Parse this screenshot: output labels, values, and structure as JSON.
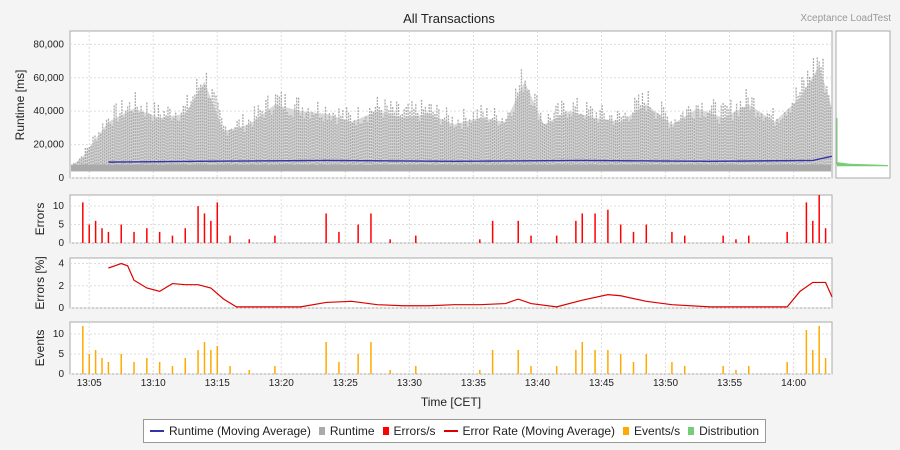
{
  "chart_data": {
    "type": "composite",
    "title": "All Transactions",
    "brand": "Xceptance LoadTest",
    "xlabel": "Time [CET]",
    "x_tick_labels": [
      "13:05",
      "13:10",
      "13:15",
      "13:20",
      "13:25",
      "13:30",
      "13:35",
      "13:40",
      "13:45",
      "13:50",
      "13:55",
      "14:00"
    ],
    "x_range_minutes": [
      0,
      59.5
    ],
    "colors": {
      "runtime_avg": "#3333aa",
      "runtime": "#aaaaaa",
      "errors": "#ff0000",
      "error_rate": "#dd0000",
      "events": "#ffaa00",
      "distribution": "#77cc77",
      "grid": "#dddddd"
    },
    "panels": {
      "runtime": {
        "ylabel": "Runtime [ms]",
        "y_ticks": [
          "0",
          "20,000",
          "40,000",
          "60,000",
          "80,000"
        ],
        "ylim": [
          0,
          88000
        ],
        "moving_average": [
          [
            3,
            9500
          ],
          [
            10,
            10000
          ],
          [
            20,
            10500
          ],
          [
            30,
            10000
          ],
          [
            40,
            10500
          ],
          [
            50,
            10000
          ],
          [
            58,
            10500
          ],
          [
            59.5,
            13000
          ]
        ],
        "envelope_max": [
          [
            0,
            8000
          ],
          [
            1,
            16000
          ],
          [
            3,
            42000
          ],
          [
            5,
            52000
          ],
          [
            7,
            45000
          ],
          [
            9,
            48000
          ],
          [
            10.5,
            72000
          ],
          [
            12,
            35000
          ],
          [
            14,
            40000
          ],
          [
            16,
            55000
          ],
          [
            18,
            50000
          ],
          [
            20,
            48000
          ],
          [
            22,
            42000
          ],
          [
            24,
            50000
          ],
          [
            26,
            45000
          ],
          [
            28,
            48000
          ],
          [
            30,
            40000
          ],
          [
            32,
            45000
          ],
          [
            34,
            42000
          ],
          [
            35.5,
            72000
          ],
          [
            37,
            40000
          ],
          [
            39,
            50000
          ],
          [
            41,
            45000
          ],
          [
            43,
            42000
          ],
          [
            45,
            55000
          ],
          [
            47,
            40000
          ],
          [
            49,
            52000
          ],
          [
            51,
            45000
          ],
          [
            53,
            55000
          ],
          [
            55,
            42000
          ],
          [
            57,
            60000
          ],
          [
            58.5,
            84000
          ],
          [
            59.5,
            52000
          ]
        ]
      },
      "errors": {
        "ylabel": "Errors",
        "y_ticks": [
          "0",
          "5",
          "10"
        ],
        "ylim": [
          0,
          13
        ],
        "bars": [
          [
            1,
            11
          ],
          [
            1.5,
            5
          ],
          [
            2,
            6
          ],
          [
            2.5,
            4
          ],
          [
            3,
            3
          ],
          [
            4,
            5
          ],
          [
            5,
            3
          ],
          [
            6,
            4
          ],
          [
            7,
            3
          ],
          [
            8,
            2
          ],
          [
            9,
            4
          ],
          [
            10,
            10
          ],
          [
            10.5,
            8
          ],
          [
            11,
            6
          ],
          [
            11.5,
            11
          ],
          [
            12.5,
            2
          ],
          [
            14,
            1
          ],
          [
            16,
            2
          ],
          [
            20,
            8
          ],
          [
            21,
            3
          ],
          [
            22.5,
            5
          ],
          [
            23.5,
            8
          ],
          [
            25,
            1
          ],
          [
            27,
            2
          ],
          [
            32,
            1
          ],
          [
            33,
            6
          ],
          [
            35,
            6
          ],
          [
            36,
            2
          ],
          [
            38,
            2
          ],
          [
            39.5,
            6
          ],
          [
            40,
            8
          ],
          [
            41,
            8
          ],
          [
            42,
            9
          ],
          [
            43,
            5
          ],
          [
            44,
            3
          ],
          [
            45,
            5
          ],
          [
            47,
            3
          ],
          [
            48,
            2
          ],
          [
            51,
            2
          ],
          [
            52,
            1
          ],
          [
            53,
            2
          ],
          [
            56,
            3
          ],
          [
            57.5,
            11
          ],
          [
            58,
            6
          ],
          [
            58.5,
            13
          ],
          [
            59,
            4
          ]
        ]
      },
      "error_rate": {
        "ylabel": "Errors [%]",
        "y_ticks": [
          "0",
          "2",
          "4"
        ],
        "ylim": [
          0,
          4.5
        ],
        "line": [
          [
            3,
            3.6
          ],
          [
            3.5,
            3.8
          ],
          [
            4,
            4.0
          ],
          [
            4.5,
            3.8
          ],
          [
            5,
            2.5
          ],
          [
            6,
            1.8
          ],
          [
            7,
            1.5
          ],
          [
            8,
            2.2
          ],
          [
            9,
            2.1
          ],
          [
            10,
            2.1
          ],
          [
            11,
            1.8
          ],
          [
            12,
            0.8
          ],
          [
            13,
            0.1
          ],
          [
            15,
            0.1
          ],
          [
            18,
            0.1
          ],
          [
            20,
            0.5
          ],
          [
            22,
            0.6
          ],
          [
            24,
            0.3
          ],
          [
            26,
            0.2
          ],
          [
            28,
            0.2
          ],
          [
            30,
            0.3
          ],
          [
            32,
            0.3
          ],
          [
            34,
            0.4
          ],
          [
            35,
            0.8
          ],
          [
            36,
            0.4
          ],
          [
            38,
            0.1
          ],
          [
            40,
            0.7
          ],
          [
            42,
            1.2
          ],
          [
            43,
            1.1
          ],
          [
            45,
            0.6
          ],
          [
            47,
            0.3
          ],
          [
            50,
            0.1
          ],
          [
            53,
            0.1
          ],
          [
            55,
            0.1
          ],
          [
            56,
            0.1
          ],
          [
            57,
            1.5
          ],
          [
            58,
            2.3
          ],
          [
            59,
            2.3
          ],
          [
            59.5,
            1.0
          ]
        ]
      },
      "events": {
        "ylabel": "Events",
        "y_ticks": [
          "0",
          "5",
          "10"
        ],
        "ylim": [
          0,
          13
        ],
        "bars": [
          [
            1,
            12
          ],
          [
            1.5,
            5
          ],
          [
            2,
            6
          ],
          [
            2.5,
            4
          ],
          [
            3,
            3
          ],
          [
            4,
            5
          ],
          [
            5,
            3
          ],
          [
            6,
            4
          ],
          [
            7,
            3
          ],
          [
            8,
            2
          ],
          [
            9,
            4
          ],
          [
            10,
            6
          ],
          [
            10.5,
            8
          ],
          [
            11,
            6
          ],
          [
            11.5,
            7
          ],
          [
            12.5,
            2
          ],
          [
            14,
            1
          ],
          [
            16,
            2
          ],
          [
            20,
            8
          ],
          [
            21,
            3
          ],
          [
            22.5,
            5
          ],
          [
            23.5,
            8
          ],
          [
            25,
            1
          ],
          [
            27,
            2
          ],
          [
            32,
            1
          ],
          [
            33,
            6
          ],
          [
            35,
            6
          ],
          [
            36,
            2
          ],
          [
            38,
            2
          ],
          [
            39.5,
            6
          ],
          [
            40,
            8
          ],
          [
            41,
            6
          ],
          [
            42,
            6
          ],
          [
            43,
            5
          ],
          [
            44,
            3
          ],
          [
            45,
            5
          ],
          [
            47,
            3
          ],
          [
            48,
            2
          ],
          [
            51,
            2
          ],
          [
            52,
            1
          ],
          [
            53,
            2
          ],
          [
            56,
            3
          ],
          [
            57.5,
            11
          ],
          [
            58,
            6
          ],
          [
            58.5,
            12
          ],
          [
            59,
            4
          ]
        ]
      }
    },
    "legend": [
      {
        "label": "Runtime (Moving Average)",
        "kind": "line",
        "color": "#3333aa"
      },
      {
        "label": "Runtime",
        "kind": "box",
        "color": "#aaaaaa"
      },
      {
        "label": "Errors/s",
        "kind": "box",
        "color": "#ff0000"
      },
      {
        "label": "Error Rate (Moving Average)",
        "kind": "line",
        "color": "#dd0000"
      },
      {
        "label": "Events/s",
        "kind": "box",
        "color": "#ffaa00"
      },
      {
        "label": "Distribution",
        "kind": "box",
        "color": "#77cc77"
      }
    ]
  }
}
